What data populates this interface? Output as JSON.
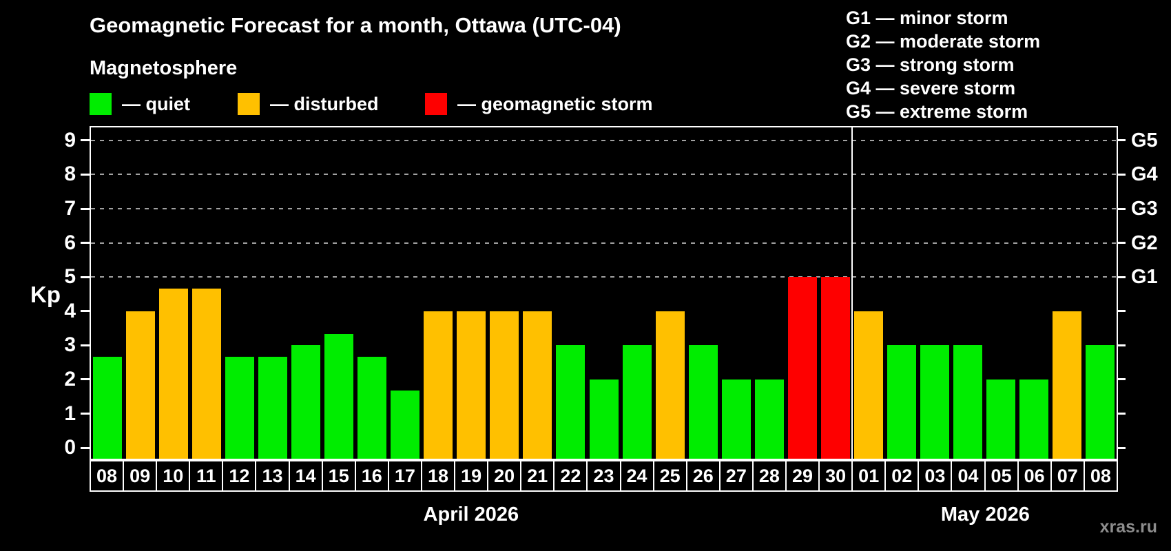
{
  "header": {
    "title": "Geomagnetic Forecast for a month, Ottawa (UTC-04)",
    "subtitle": "Magnetosphere"
  },
  "g_legend": [
    "G1 — minor storm",
    "G2 — moderate storm",
    "G3 — strong storm",
    "G4 — severe storm",
    "G5 — extreme storm"
  ],
  "watermark": "xras.ru",
  "chart_data": {
    "type": "bar",
    "title": "Geomagnetic Forecast for a month, Ottawa (UTC-04)",
    "ylabel": "Kp",
    "ylim": [
      0,
      9
    ],
    "yticks": [
      0,
      1,
      2,
      3,
      4,
      5,
      6,
      7,
      8,
      9
    ],
    "grid_levels": [
      5,
      6,
      7,
      8,
      9
    ],
    "grid_on": true,
    "right_axis_labels": [
      {
        "level": 5,
        "label": "G1"
      },
      {
        "level": 6,
        "label": "G2"
      },
      {
        "level": 7,
        "label": "G3"
      },
      {
        "level": 8,
        "label": "G4"
      },
      {
        "level": 9,
        "label": "G5"
      }
    ],
    "legend": [
      {
        "status": "quiet",
        "label": "— quiet"
      },
      {
        "status": "disturbed",
        "label": "— disturbed"
      },
      {
        "status": "storm",
        "label": "— geomagnetic storm"
      }
    ],
    "status_colors": {
      "quiet": "#00ed00",
      "disturbed": "#ffc000",
      "storm": "#fe0000"
    },
    "months": [
      {
        "label": "April 2026",
        "days": [
          "08",
          "09",
          "10",
          "11",
          "12",
          "13",
          "14",
          "15",
          "16",
          "17",
          "18",
          "19",
          "20",
          "21",
          "22",
          "23",
          "24",
          "25",
          "26",
          "27",
          "28",
          "29",
          "30"
        ],
        "values": [
          2.67,
          4.0,
          4.67,
          4.67,
          2.67,
          2.67,
          3.0,
          3.33,
          2.67,
          1.67,
          4.0,
          4.0,
          4.0,
          4.0,
          3.0,
          2.0,
          3.0,
          4.0,
          3.0,
          2.0,
          2.0,
          5.0,
          5.0
        ],
        "statuses": [
          "quiet",
          "disturbed",
          "disturbed",
          "disturbed",
          "quiet",
          "quiet",
          "quiet",
          "quiet",
          "quiet",
          "quiet",
          "disturbed",
          "disturbed",
          "disturbed",
          "disturbed",
          "quiet",
          "quiet",
          "quiet",
          "disturbed",
          "quiet",
          "quiet",
          "quiet",
          "storm",
          "storm"
        ]
      },
      {
        "label": "May 2026",
        "days": [
          "01",
          "02",
          "03",
          "04",
          "05",
          "06",
          "07",
          "08"
        ],
        "values": [
          4.0,
          3.0,
          3.0,
          3.0,
          2.0,
          2.0,
          4.0,
          3.0
        ],
        "statuses": [
          "disturbed",
          "quiet",
          "quiet",
          "quiet",
          "quiet",
          "quiet",
          "disturbed",
          "quiet"
        ]
      }
    ]
  }
}
